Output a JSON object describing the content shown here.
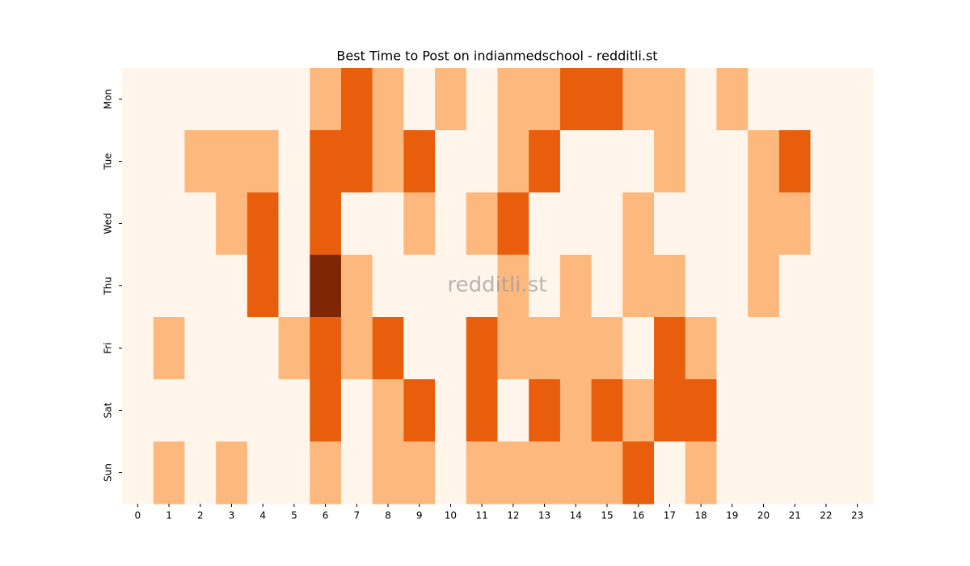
{
  "chart_data": {
    "type": "heatmap",
    "title": "Best Time to Post on indianmedschool - redditli.st",
    "watermark": "redditli.st",
    "x_categories": [
      "0",
      "1",
      "2",
      "3",
      "4",
      "5",
      "6",
      "7",
      "8",
      "9",
      "10",
      "11",
      "12",
      "13",
      "14",
      "15",
      "16",
      "17",
      "18",
      "19",
      "20",
      "21",
      "22",
      "23"
    ],
    "y_categories": [
      "Mon",
      "Tue",
      "Wed",
      "Thu",
      "Fri",
      "Sat",
      "Sun"
    ],
    "values": [
      [
        0,
        0,
        0,
        0,
        0,
        0,
        1,
        2,
        1,
        0,
        1,
        0,
        1,
        1,
        2,
        2,
        1,
        1,
        0,
        1,
        0,
        0,
        0,
        0
      ],
      [
        0,
        0,
        1,
        1,
        1,
        0,
        2,
        2,
        1,
        2,
        0,
        0,
        1,
        2,
        0,
        0,
        0,
        1,
        0,
        0,
        1,
        2,
        0,
        0
      ],
      [
        0,
        0,
        0,
        1,
        2,
        0,
        2,
        0,
        0,
        1,
        0,
        1,
        2,
        0,
        0,
        0,
        1,
        0,
        0,
        0,
        1,
        1,
        0,
        0
      ],
      [
        0,
        0,
        0,
        0,
        2,
        0,
        3,
        1,
        0,
        0,
        0,
        0,
        1,
        0,
        1,
        0,
        1,
        1,
        0,
        0,
        1,
        0,
        0,
        0
      ],
      [
        0,
        1,
        0,
        0,
        0,
        1,
        2,
        1,
        2,
        0,
        0,
        2,
        1,
        1,
        1,
        1,
        0,
        2,
        1,
        0,
        0,
        0,
        0,
        0
      ],
      [
        0,
        0,
        0,
        0,
        0,
        0,
        2,
        0,
        1,
        2,
        0,
        2,
        0,
        2,
        1,
        2,
        1,
        2,
        2,
        0,
        0,
        0,
        0,
        0
      ],
      [
        0,
        1,
        0,
        1,
        0,
        0,
        1,
        0,
        1,
        1,
        0,
        1,
        1,
        1,
        1,
        1,
        2,
        0,
        1,
        0,
        0,
        0,
        0,
        0
      ]
    ],
    "zlim": [
      0,
      3
    ],
    "colorscale": [
      "#fff5eb",
      "#fdb97d",
      "#e95e0d",
      "#7f2704"
    ]
  }
}
